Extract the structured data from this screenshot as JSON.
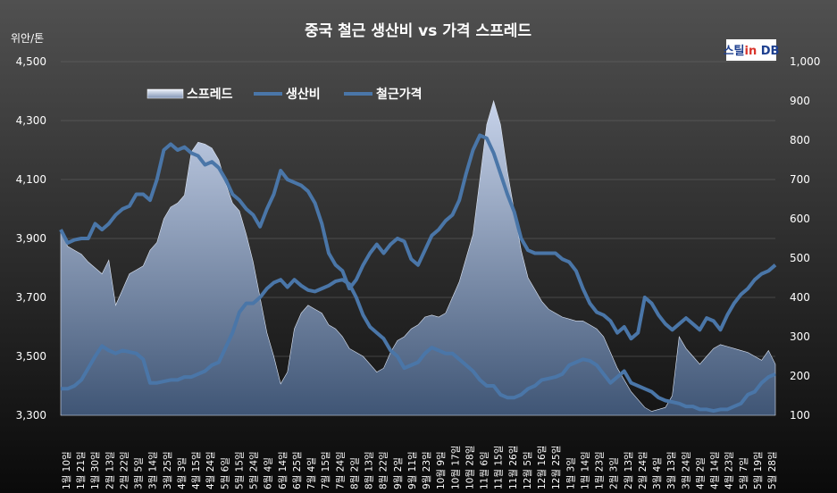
{
  "logo_text": "스틸in DB",
  "colors": {
    "background_top": "#505050",
    "background_bottom": "#0a0a0a",
    "spread_fill_top": "#c7d3ea",
    "spread_fill_bottom": "#3f5575",
    "cost_line": "#4a76a8",
    "price_line": "#4a76a8"
  },
  "chart_data": {
    "type": "line",
    "title": "중국 철근 생산비 vs 가격 스프레드",
    "y_left_unit": "위안/톤",
    "y_left": {
      "min": 3300,
      "max": 4500,
      "ticks": [
        "3,300",
        "3,500",
        "3,700",
        "3,900",
        "4,100",
        "4,300",
        "4,500"
      ]
    },
    "y_right": {
      "min": 100,
      "max": 1000,
      "ticks": [
        "100",
        "200",
        "300",
        "400",
        "500",
        "600",
        "700",
        "800",
        "900",
        "1,000"
      ]
    },
    "legend": [
      "스프레드",
      "생산비",
      "철근가격"
    ],
    "legend_position": "top-left",
    "x_tick_labels": [
      "1월 10일",
      "1월 21일",
      "1월 30일",
      "2월 13일",
      "2월 22일",
      "3월 5일",
      "3월 14일",
      "3월 25일",
      "4월 3일",
      "4월 15일",
      "4월 24일",
      "5월 6일",
      "5월 15일",
      "5월 24일",
      "6월 4일",
      "6월 14일",
      "6월 25일",
      "7월 4일",
      "7월 15일",
      "7월 24일",
      "8월 2일",
      "8월 13일",
      "8월 22일",
      "9월 2일",
      "9월 11일",
      "9월 23일",
      "10월 9일",
      "10월 17일",
      "10월 28일",
      "11월 6일",
      "11월 15일",
      "11월 26일",
      "12월 5일",
      "12월 16일",
      "12월 25일",
      "1월 3일",
      "1월 14일",
      "1월 23일",
      "2월 3일",
      "2월 13일",
      "2월 24일",
      "3월 4일",
      "3월 13일",
      "3월 24일",
      "4월 2일",
      "4월 14일",
      "4월 23일",
      "5월 7일",
      "5월 19일",
      "5월 28일"
    ],
    "series": [
      {
        "name": "스프레드",
        "axis": "right",
        "style": "area",
        "values": [
          570,
          530,
          520,
          510,
          490,
          475,
          460,
          495,
          380,
          420,
          460,
          470,
          480,
          520,
          540,
          600,
          630,
          640,
          660,
          770,
          795,
          790,
          780,
          750,
          690,
          640,
          620,
          560,
          490,
          400,
          310,
          250,
          180,
          210,
          320,
          360,
          380,
          370,
          360,
          330,
          320,
          300,
          270,
          260,
          250,
          230,
          210,
          220,
          260,
          290,
          300,
          320,
          330,
          350,
          355,
          350,
          360,
          400,
          440,
          500,
          560,
          700,
          840,
          900,
          840,
          720,
          620,
          520,
          450,
          420,
          390,
          370,
          360,
          350,
          345,
          340,
          340,
          330,
          320,
          300,
          260,
          220,
          190,
          160,
          140,
          120,
          110,
          115,
          120,
          150,
          300,
          270,
          250,
          230,
          250,
          270,
          280,
          275,
          270,
          265,
          260,
          250,
          240,
          265,
          230
        ]
      },
      {
        "name": "생산비",
        "axis": "left",
        "values": [
          3390,
          3390,
          3400,
          3420,
          3460,
          3500,
          3535,
          3520,
          3510,
          3520,
          3515,
          3510,
          3490,
          3410,
          3410,
          3415,
          3420,
          3420,
          3430,
          3430,
          3440,
          3450,
          3470,
          3480,
          3530,
          3580,
          3650,
          3680,
          3680,
          3700,
          3730,
          3750,
          3760,
          3735,
          3760,
          3740,
          3725,
          3720,
          3730,
          3740,
          3755,
          3760,
          3745,
          3700,
          3640,
          3600,
          3580,
          3560,
          3520,
          3500,
          3460,
          3470,
          3480,
          3510,
          3530,
          3520,
          3510,
          3510,
          3490,
          3470,
          3450,
          3420,
          3400,
          3400,
          3370,
          3360,
          3360,
          3370,
          3390,
          3400,
          3420,
          3425,
          3430,
          3440,
          3470,
          3480,
          3490,
          3485,
          3470,
          3440,
          3410,
          3430,
          3450,
          3410,
          3400,
          3390,
          3380,
          3360,
          3350,
          3345,
          3340,
          3330,
          3330,
          3320,
          3320,
          3315,
          3320,
          3320,
          3330,
          3340,
          3370,
          3380,
          3410,
          3430,
          3440
        ]
      },
      {
        "name": "철근가격",
        "axis": "left",
        "values": [
          3930,
          3885,
          3895,
          3900,
          3900,
          3950,
          3930,
          3950,
          3980,
          4000,
          4010,
          4050,
          4050,
          4030,
          4100,
          4200,
          4220,
          4200,
          4210,
          4190,
          4180,
          4150,
          4160,
          4140,
          4100,
          4050,
          4030,
          4000,
          3980,
          3940,
          4000,
          4050,
          4130,
          4100,
          4090,
          4080,
          4060,
          4020,
          3950,
          3850,
          3810,
          3790,
          3730,
          3760,
          3810,
          3850,
          3880,
          3850,
          3880,
          3900,
          3890,
          3830,
          3810,
          3860,
          3910,
          3930,
          3960,
          3980,
          4030,
          4120,
          4200,
          4250,
          4240,
          4190,
          4120,
          4050,
          3990,
          3900,
          3860,
          3850,
          3850,
          3850,
          3850,
          3830,
          3820,
          3790,
          3730,
          3680,
          3650,
          3640,
          3620,
          3580,
          3600,
          3560,
          3580,
          3700,
          3680,
          3640,
          3610,
          3590,
          3610,
          3630,
          3610,
          3590,
          3630,
          3620,
          3590,
          3640,
          3680,
          3710,
          3730,
          3760,
          3780,
          3790,
          3810
        ]
      }
    ]
  }
}
